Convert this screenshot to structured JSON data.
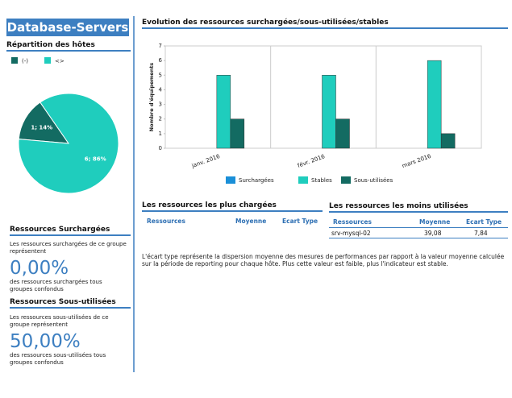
{
  "header": {
    "title": "Database-Servers"
  },
  "chart_data": [
    {
      "type": "pie",
      "title": "Répartition des hôtes",
      "categories": [
        "(-)",
        "<>"
      ],
      "values": [
        14,
        86
      ],
      "value_labels": [
        "1; 14%",
        "6; 86%"
      ],
      "colors": [
        "#136b62",
        "#1fcdbd"
      ]
    },
    {
      "type": "bar",
      "title": "Evolution des ressources surchargées/sous-utilisées/stables",
      "y_label": "Nombre d'équipements",
      "categories": [
        "janv. 2016",
        "févr. 2016",
        "mars 2016"
      ],
      "series": [
        {
          "name": "Surchargées",
          "color": "#1a8fd8",
          "values": [
            0,
            0,
            0
          ]
        },
        {
          "name": "Stables",
          "color": "#1fcdbd",
          "values": [
            5,
            5,
            6
          ]
        },
        {
          "name": "Sous-utilisées",
          "color": "#136b62",
          "values": [
            2,
            2,
            1
          ]
        }
      ],
      "ylim": [
        0,
        7
      ],
      "yticks": [
        0,
        1,
        2,
        3,
        4,
        5,
        6,
        7
      ],
      "legend": "bottom"
    }
  ],
  "summary": [
    {
      "title": "Ressources Surchargées",
      "text": "Les ressources surchargées de ce groupe représentent",
      "value": "0,00%",
      "footer": "des ressources surchargées tous groupes confondus"
    },
    {
      "title": "Ressources Sous-utilisées",
      "text": "Les ressources sous-utilisées de ce groupe représentent",
      "value": "50,00%",
      "footer": "des ressources sous-utilisées tous groupes confondus"
    }
  ],
  "tables": [
    {
      "title": "Les ressources les plus chargées",
      "columns": [
        "Ressources",
        "Moyenne",
        "Ecart Type"
      ],
      "rows": []
    },
    {
      "title": "Les ressources les moins utilisées",
      "columns": [
        "Ressources",
        "Moyenne",
        "Ecart Type"
      ],
      "rows": [
        [
          "srv-mysql-02",
          "39,08",
          "7,84"
        ]
      ]
    }
  ],
  "note": "L'écart type représente la dispersion moyenne des mesures de performances par rapport à la valeur moyenne calculée sur la période de reporting pour chaque hôte. Plus cette valeur est faible, plus l'indicateur est stable."
}
